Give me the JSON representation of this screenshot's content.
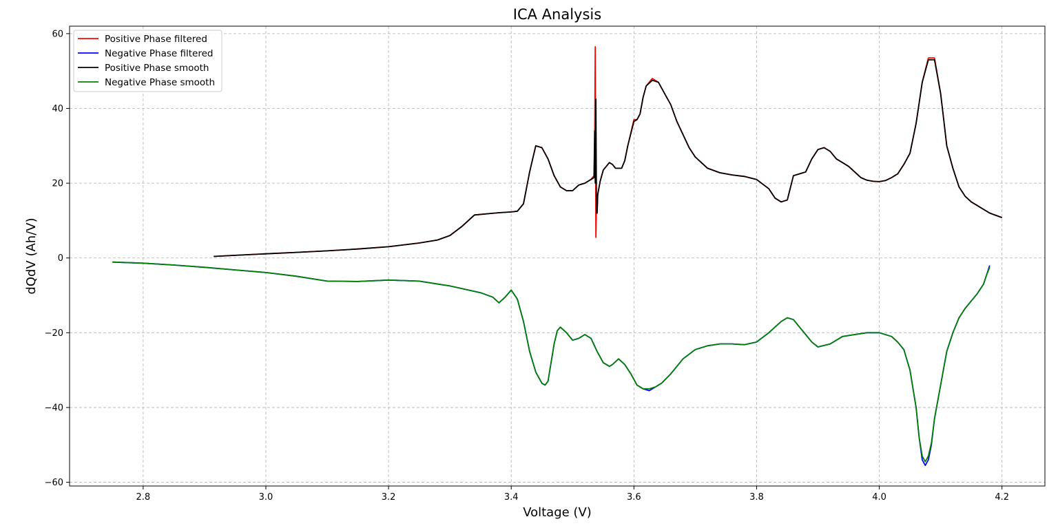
{
  "chart_data": {
    "type": "line",
    "title": "ICA Analysis",
    "xlabel": "Voltage (V)",
    "ylabel": "dQdV (Ah/V)",
    "xlim": [
      2.68,
      4.27
    ],
    "ylim": [
      -61,
      62
    ],
    "xticks": [
      2.8,
      3.0,
      3.2,
      3.4,
      3.6,
      3.8,
      4.0,
      4.2
    ],
    "xtick_labels": [
      "2.8",
      "3.0",
      "3.2",
      "3.4",
      "3.6",
      "3.8",
      "4.0",
      "4.2"
    ],
    "yticks": [
      -60,
      -40,
      -20,
      0,
      20,
      40,
      60
    ],
    "ytick_labels": [
      "−60",
      "−40",
      "−20",
      "0",
      "20",
      "40",
      "60"
    ],
    "grid": true,
    "legend_position": "top-left",
    "series": [
      {
        "name": "Positive Phase filtered",
        "color": "#ff0000",
        "x": [
          2.915,
          2.95,
          3.0,
          3.05,
          3.1,
          3.15,
          3.2,
          3.25,
          3.28,
          3.3,
          3.32,
          3.34,
          3.36,
          3.38,
          3.4,
          3.41,
          3.42,
          3.43,
          3.44,
          3.45,
          3.46,
          3.47,
          3.48,
          3.49,
          3.5,
          3.51,
          3.52,
          3.53,
          3.535,
          3.536,
          3.537,
          3.538,
          3.539,
          3.54,
          3.541,
          3.545,
          3.55,
          3.56,
          3.565,
          3.57,
          3.58,
          3.585,
          3.59,
          3.6,
          3.605,
          3.61,
          3.615,
          3.62,
          3.63,
          3.64,
          3.65,
          3.66,
          3.67,
          3.68,
          3.69,
          3.7,
          3.72,
          3.74,
          3.76,
          3.78,
          3.8,
          3.82,
          3.83,
          3.84,
          3.85,
          3.86,
          3.87,
          3.88,
          3.89,
          3.9,
          3.91,
          3.92,
          3.93,
          3.94,
          3.95,
          3.96,
          3.97,
          3.98,
          3.99,
          4.0,
          4.01,
          4.02,
          4.03,
          4.04,
          4.05,
          4.06,
          4.07,
          4.08,
          4.09,
          4.1,
          4.105,
          4.11,
          4.12,
          4.13,
          4.14,
          4.15,
          4.16,
          4.17,
          4.18,
          4.2
        ],
        "y": [
          0.4,
          0.7,
          1.1,
          1.5,
          1.9,
          2.4,
          3.0,
          4.0,
          4.8,
          6.0,
          8.5,
          11.5,
          11.8,
          12.1,
          12.3,
          12.5,
          14.5,
          23.0,
          30.0,
          29.5,
          26.5,
          22.0,
          19.0,
          18.0,
          18.0,
          19.5,
          20.0,
          21.0,
          22.0,
          30.0,
          56.5,
          5.5,
          15.0,
          12.0,
          17.0,
          20.5,
          23.5,
          25.5,
          25.0,
          24.0,
          24.0,
          26.0,
          30.0,
          37.0,
          37.0,
          38.5,
          43.0,
          46.0,
          48.0,
          47.0,
          44.0,
          41.0,
          36.5,
          33.0,
          29.5,
          27.0,
          24.0,
          22.8,
          22.2,
          21.8,
          21.0,
          18.5,
          16.0,
          15.0,
          15.5,
          22.0,
          22.5,
          23.0,
          26.5,
          29.0,
          29.5,
          28.5,
          26.5,
          25.5,
          24.5,
          23.0,
          21.5,
          20.8,
          20.5,
          20.4,
          20.7,
          21.5,
          22.5,
          25.0,
          28.0,
          36.0,
          47.0,
          53.5,
          53.5,
          44.0,
          37.0,
          30.0,
          24.0,
          19.0,
          16.5,
          15.0,
          14.0,
          13.0,
          12.0,
          10.8
        ]
      },
      {
        "name": "Negative Phase filtered",
        "color": "#0000ff",
        "x": [
          2.75,
          2.8,
          2.85,
          2.9,
          2.95,
          3.0,
          3.05,
          3.1,
          3.15,
          3.2,
          3.25,
          3.3,
          3.35,
          3.37,
          3.38,
          3.39,
          3.4,
          3.41,
          3.42,
          3.43,
          3.44,
          3.45,
          3.455,
          3.46,
          3.47,
          3.475,
          3.48,
          3.49,
          3.5,
          3.51,
          3.52,
          3.53,
          3.54,
          3.55,
          3.56,
          3.565,
          3.575,
          3.585,
          3.595,
          3.605,
          3.615,
          3.625,
          3.635,
          3.645,
          3.66,
          3.68,
          3.7,
          3.72,
          3.74,
          3.76,
          3.78,
          3.8,
          3.82,
          3.84,
          3.85,
          3.86,
          3.87,
          3.88,
          3.89,
          3.9,
          3.92,
          3.94,
          3.96,
          3.98,
          4.0,
          4.02,
          4.03,
          4.04,
          4.05,
          4.06,
          4.065,
          4.07,
          4.075,
          4.08,
          4.085,
          4.09,
          4.1,
          4.11,
          4.12,
          4.13,
          4.14,
          4.15,
          4.16,
          4.17,
          4.175,
          4.18
        ],
        "y": [
          -1.1,
          -1.4,
          -1.9,
          -2.5,
          -3.2,
          -3.9,
          -4.9,
          -6.2,
          -6.3,
          -5.9,
          -6.2,
          -7.5,
          -9.3,
          -10.5,
          -12.0,
          -10.5,
          -8.6,
          -11.0,
          -17.0,
          -25.0,
          -30.5,
          -33.5,
          -34.0,
          -33.0,
          -23.0,
          -19.5,
          -18.5,
          -20.0,
          -22.0,
          -21.5,
          -20.5,
          -21.5,
          -25.0,
          -28.0,
          -29.0,
          -28.5,
          -27.0,
          -28.5,
          -31.0,
          -34.0,
          -35.0,
          -35.5,
          -34.5,
          -33.5,
          -31.0,
          -27.0,
          -24.5,
          -23.5,
          -23.0,
          -23.0,
          -23.2,
          -22.5,
          -20.0,
          -17.0,
          -16.0,
          -16.5,
          -18.5,
          -20.5,
          -22.5,
          -23.8,
          -23.0,
          -21.0,
          -20.5,
          -20.0,
          -20.0,
          -21.0,
          -22.5,
          -24.5,
          -30.0,
          -40.0,
          -48.0,
          -54.0,
          -55.5,
          -54.0,
          -50.0,
          -43.0,
          -34.0,
          -25.0,
          -20.0,
          -16.0,
          -13.5,
          -11.5,
          -9.5,
          -7.0,
          -4.5,
          -2.0
        ]
      },
      {
        "name": "Positive Phase smooth",
        "color": "#000000",
        "x": [
          2.915,
          2.95,
          3.0,
          3.05,
          3.1,
          3.15,
          3.2,
          3.25,
          3.28,
          3.3,
          3.32,
          3.34,
          3.36,
          3.38,
          3.4,
          3.41,
          3.42,
          3.43,
          3.44,
          3.45,
          3.46,
          3.47,
          3.48,
          3.49,
          3.5,
          3.51,
          3.52,
          3.53,
          3.535,
          3.536,
          3.537,
          3.538,
          3.539,
          3.54,
          3.541,
          3.545,
          3.55,
          3.56,
          3.565,
          3.57,
          3.58,
          3.585,
          3.59,
          3.6,
          3.605,
          3.61,
          3.615,
          3.62,
          3.63,
          3.64,
          3.65,
          3.66,
          3.67,
          3.68,
          3.69,
          3.7,
          3.72,
          3.74,
          3.76,
          3.78,
          3.8,
          3.82,
          3.83,
          3.84,
          3.85,
          3.86,
          3.87,
          3.88,
          3.89,
          3.9,
          3.91,
          3.92,
          3.93,
          3.94,
          3.95,
          3.96,
          3.97,
          3.98,
          3.99,
          4.0,
          4.01,
          4.02,
          4.03,
          4.04,
          4.05,
          4.06,
          4.07,
          4.08,
          4.09,
          4.1,
          4.105,
          4.11,
          4.12,
          4.13,
          4.14,
          4.15,
          4.16,
          4.17,
          4.18,
          4.2
        ],
        "y": [
          0.4,
          0.7,
          1.1,
          1.5,
          1.9,
          2.4,
          3.0,
          4.0,
          4.8,
          6.0,
          8.5,
          11.5,
          11.8,
          12.1,
          12.3,
          12.5,
          14.5,
          23.0,
          30.0,
          29.5,
          26.5,
          22.0,
          19.0,
          18.0,
          18.0,
          19.5,
          20.0,
          21.0,
          21.5,
          34.0,
          20.0,
          42.5,
          12.0,
          12.0,
          17.0,
          20.5,
          23.5,
          25.5,
          25.0,
          24.0,
          24.0,
          26.0,
          30.0,
          36.5,
          37.0,
          38.5,
          43.0,
          46.0,
          47.5,
          47.0,
          44.0,
          41.0,
          36.5,
          33.0,
          29.5,
          27.0,
          24.0,
          22.8,
          22.2,
          21.8,
          21.0,
          18.5,
          16.0,
          15.0,
          15.5,
          22.0,
          22.5,
          23.0,
          26.5,
          29.0,
          29.5,
          28.5,
          26.5,
          25.5,
          24.5,
          23.0,
          21.5,
          20.8,
          20.5,
          20.4,
          20.7,
          21.5,
          22.5,
          25.0,
          28.0,
          36.0,
          47.0,
          53.0,
          53.0,
          44.0,
          37.0,
          30.0,
          24.0,
          19.0,
          16.5,
          15.0,
          14.0,
          13.0,
          12.0,
          10.8
        ]
      },
      {
        "name": "Negative Phase smooth",
        "color": "#008000",
        "x": [
          2.75,
          2.8,
          2.85,
          2.9,
          2.95,
          3.0,
          3.05,
          3.1,
          3.15,
          3.2,
          3.25,
          3.3,
          3.35,
          3.37,
          3.38,
          3.39,
          3.4,
          3.41,
          3.42,
          3.43,
          3.44,
          3.45,
          3.455,
          3.46,
          3.47,
          3.475,
          3.48,
          3.49,
          3.5,
          3.51,
          3.52,
          3.53,
          3.54,
          3.55,
          3.56,
          3.565,
          3.575,
          3.585,
          3.595,
          3.605,
          3.615,
          3.625,
          3.635,
          3.645,
          3.66,
          3.68,
          3.7,
          3.72,
          3.74,
          3.76,
          3.78,
          3.8,
          3.82,
          3.84,
          3.85,
          3.86,
          3.87,
          3.88,
          3.89,
          3.9,
          3.92,
          3.94,
          3.96,
          3.98,
          4.0,
          4.02,
          4.03,
          4.04,
          4.05,
          4.06,
          4.065,
          4.07,
          4.075,
          4.08,
          4.085,
          4.09,
          4.1,
          4.11,
          4.12,
          4.13,
          4.14,
          4.15,
          4.16,
          4.17,
          4.175,
          4.18
        ],
        "y": [
          -1.1,
          -1.4,
          -1.9,
          -2.5,
          -3.2,
          -3.9,
          -4.9,
          -6.2,
          -6.3,
          -5.9,
          -6.2,
          -7.5,
          -9.3,
          -10.5,
          -12.0,
          -10.5,
          -8.6,
          -11.0,
          -17.0,
          -25.0,
          -30.5,
          -33.5,
          -34.0,
          -33.0,
          -23.0,
          -19.5,
          -18.5,
          -20.0,
          -22.0,
          -21.5,
          -20.5,
          -21.5,
          -25.0,
          -28.0,
          -29.0,
          -28.5,
          -27.0,
          -28.5,
          -31.0,
          -34.0,
          -35.0,
          -35.0,
          -34.5,
          -33.5,
          -31.0,
          -27.0,
          -24.5,
          -23.5,
          -23.0,
          -23.0,
          -23.2,
          -22.5,
          -20.0,
          -17.0,
          -16.0,
          -16.5,
          -18.5,
          -20.5,
          -22.5,
          -23.8,
          -23.0,
          -21.0,
          -20.5,
          -20.0,
          -20.0,
          -21.0,
          -22.5,
          -24.5,
          -30.0,
          -40.0,
          -48.0,
          -53.0,
          -54.5,
          -53.0,
          -49.5,
          -43.0,
          -34.0,
          -25.0,
          -20.0,
          -16.0,
          -13.5,
          -11.5,
          -9.5,
          -7.0,
          -4.5,
          -2.5
        ]
      }
    ]
  }
}
